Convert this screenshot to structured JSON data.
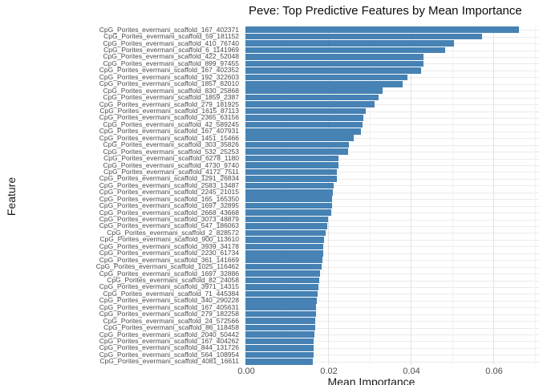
{
  "chart_data": {
    "type": "bar",
    "orientation": "horizontal",
    "title": "Peve: Top Predictive Features by Mean Importance",
    "xlabel": "Mean Importance",
    "ylabel": "Feature",
    "bar_color": "#4682B4",
    "grid_major_color": "#e2e2e2",
    "grid_minor_color": "#f2f2f2",
    "xlim": [
      0,
      0.071
    ],
    "x_ticks": [
      {
        "label": "0.00",
        "value": 0.0
      },
      {
        "label": "0.02",
        "value": 0.02
      },
      {
        "label": "0.04",
        "value": 0.04
      },
      {
        "label": "0.06",
        "value": 0.06
      }
    ],
    "x_minor_ticks": [
      0.01,
      0.03,
      0.05,
      0.07
    ],
    "legend": "none",
    "categories": [
      "CpG_Porites_evermani_scaffold_167_402371",
      "CpG_Porites_evermani_scaffold_59_181152",
      "CpG_Porites_evermani_scaffold_410_76740",
      "CpG_Porites_evermani_scaffold_6_1141969",
      "CpG_Porites_evermani_scaffold_422_52048",
      "CpG_Porites_evermani_scaffold_899_97455",
      "CpG_Porites_evermani_scaffold_167_402352",
      "CpG_Porites_evermani_scaffold_192_322603",
      "CpG_Porites_evermani_scaffold_1857_82010",
      "CpG_Porites_evermani_scaffold_830_25868",
      "CpG_Porites_evermani_scaffold_1859_2387",
      "CpG_Porites_evermani_scaffold_279_181925",
      "CpG_Porites_evermani_scaffold_1615_87113",
      "CpG_Porites_evermani_scaffold_2365_63156",
      "CpG_Porites_evermani_scaffold_42_589245",
      "CpG_Porites_evermani_scaffold_167_407931",
      "CpG_Porites_evermani_scaffold_1451_15466",
      "CpG_Porites_evermani_scaffold_303_35826",
      "CpG_Porites_evermani_scaffold_532_25253",
      "CpG_Porites_evermani_scaffold_6278_1180",
      "CpG_Porites_evermani_scaffold_4730_9740",
      "CpG_Porites_evermani_scaffold_4172_7511",
      "CpG_Porites_evermani_scaffold_1291_26834",
      "CpG_Porites_evermani_scaffold_2583_13487",
      "CpG_Porites_evermani_scaffold_2245_21015",
      "CpG_Porites_evermani_scaffold_165_165350",
      "CpG_Porites_evermani_scaffold_1697_32895",
      "CpG_Porites_evermani_scaffold_2668_43668",
      "CpG_Porites_evermani_scaffold_3073_48879",
      "CpG_Porites_evermani_scaffold_547_186063",
      "CpG_Porites_evermani_scaffold_2_828572",
      "CpG_Porites_evermani_scaffold_900_113610",
      "CpG_Porites_evermani_scaffold_3939_34178",
      "CpG_Porites_evermani_scaffold_2230_61734",
      "CpG_Porites_evermani_scaffold_361_141669",
      "CpG_Porites_evermani_scaffold_1025_116462",
      "CpG_Porites_evermani_scaffold_1697_32886",
      "CpG_Porites_evermani_scaffold_82_24058",
      "CpG_Porites_evermani_scaffold_3971_14315",
      "CpG_Porites_evermani_scaffold_71_445384",
      "CpG_Porites_evermani_scaffold_340_290228",
      "CpG_Porites_evermani_scaffold_167_405631",
      "CpG_Porites_evermani_scaffold_279_182258",
      "CpG_Porites_evermani_scaffold_24_572566",
      "CpG_Porites_evermani_scaffold_86_118458",
      "CpG_Porites_evermani_scaffold_2040_50442",
      "CpG_Porites_evermani_scaffold_167_404262",
      "CpG_Porites_evermani_scaffold_844_131726",
      "CpG_Porites_evermani_scaffold_564_108954",
      "CpG_Porites_evermani_scaffold_4081_16611"
    ],
    "values": [
      0.0663,
      0.0573,
      0.0505,
      0.0484,
      0.0432,
      0.0431,
      0.0425,
      0.0392,
      0.0381,
      0.0333,
      0.0323,
      0.0313,
      0.0291,
      0.0286,
      0.0283,
      0.0279,
      0.0262,
      0.025,
      0.0248,
      0.0226,
      0.0225,
      0.0222,
      0.0221,
      0.0214,
      0.0211,
      0.021,
      0.0209,
      0.0208,
      0.02,
      0.0198,
      0.0195,
      0.019,
      0.0189,
      0.0188,
      0.0186,
      0.0185,
      0.018,
      0.0178,
      0.0177,
      0.0174,
      0.0172,
      0.0171,
      0.017,
      0.0169,
      0.0168,
      0.0167,
      0.0166,
      0.0166,
      0.0165,
      0.0164
    ]
  }
}
